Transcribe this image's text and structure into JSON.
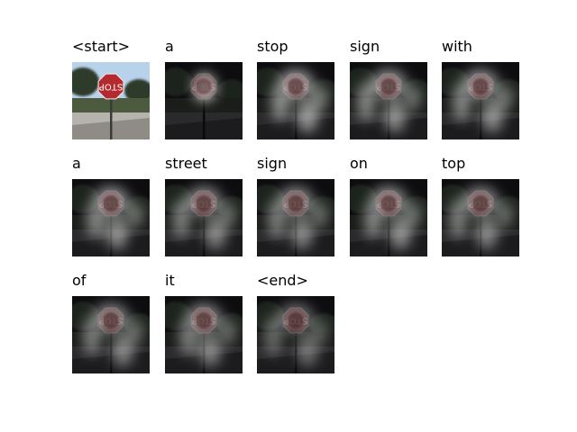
{
  "frames": [
    {
      "word": "<start>",
      "kind": "original",
      "glow": 0
    },
    {
      "word": "a",
      "kind": "attention",
      "glow": 0.85
    },
    {
      "word": "stop",
      "kind": "attention",
      "glow": 0.6
    },
    {
      "word": "sign",
      "kind": "attention",
      "glow": 0.55
    },
    {
      "word": "with",
      "kind": "attention",
      "glow": 0.55
    },
    {
      "word": "a",
      "kind": "attention",
      "glow": 0.55
    },
    {
      "word": "street",
      "kind": "attention",
      "glow": 0.5
    },
    {
      "word": "sign",
      "kind": "attention",
      "glow": 0.5
    },
    {
      "word": "on",
      "kind": "attention",
      "glow": 0.55
    },
    {
      "word": "top",
      "kind": "attention",
      "glow": 0.5
    },
    {
      "word": "of",
      "kind": "attention",
      "glow": 0.5
    },
    {
      "word": "it",
      "kind": "attention",
      "glow": 0.5
    },
    {
      "word": "<end>",
      "kind": "attention",
      "glow": 0.4
    }
  ],
  "sign_text": "STOP"
}
